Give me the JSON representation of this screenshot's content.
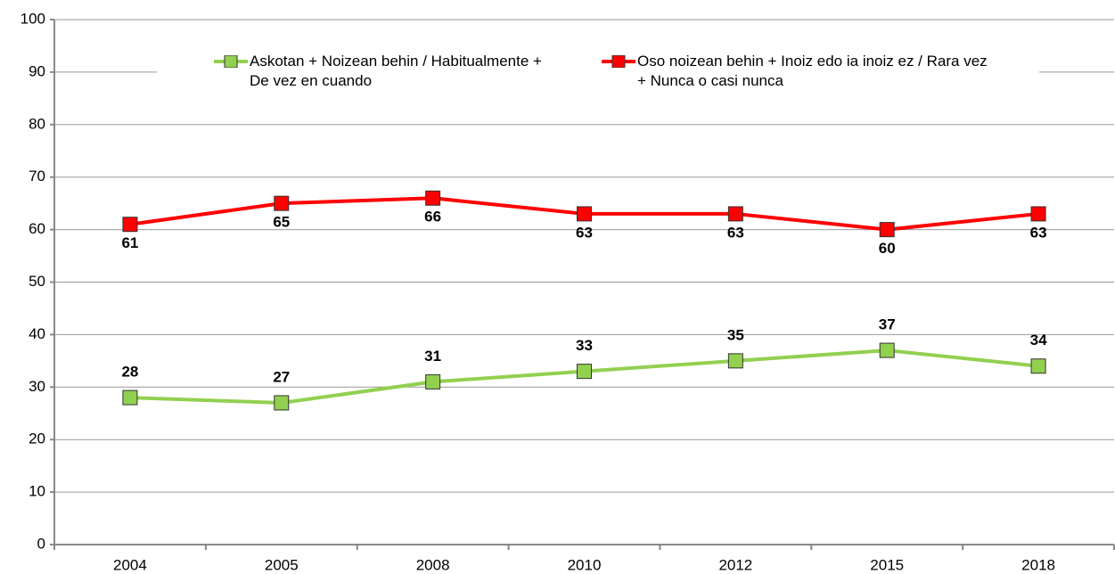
{
  "chart_data": {
    "type": "line",
    "categories": [
      "2004",
      "2005",
      "2008",
      "2010",
      "2012",
      "2015",
      "2018"
    ],
    "series": [
      {
        "name": "Askotan + Noizean behin / Habitualmente + De vez en cuando",
        "color": "#92d050",
        "values": [
          28,
          27,
          31,
          33,
          35,
          37,
          34
        ]
      },
      {
        "name": "Oso noizean behin + Inoiz edo ia inoiz ez / Rara vez + Nunca o casi nunca",
        "color": "#ff0000",
        "values": [
          61,
          65,
          66,
          63,
          63,
          60,
          63
        ]
      }
    ],
    "ylim": [
      0,
      100
    ],
    "yticks": [
      0,
      10,
      20,
      30,
      40,
      50,
      60,
      70,
      80,
      90,
      100
    ],
    "grid": true
  }
}
